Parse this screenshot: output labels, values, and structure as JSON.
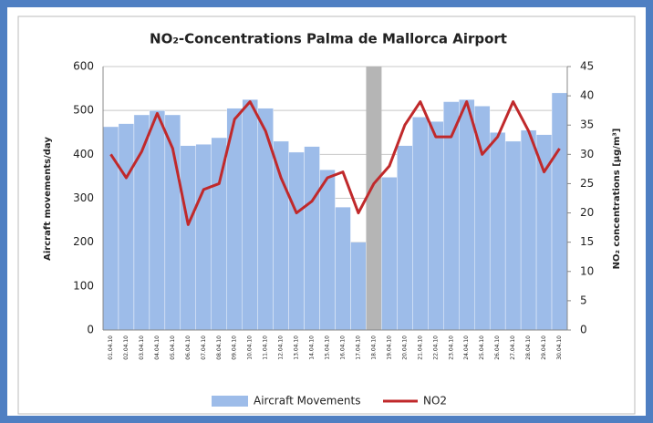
{
  "chart_data": {
    "type": "bar_line",
    "title": "NO₂-Concentrations Palma de Mallorca Airport",
    "y_label": "Aircraft movements/day",
    "y2_label": "NO₂ concentrations [µg/m³]",
    "categories": [
      "01.04.10",
      "02.04.10",
      "03.04.10",
      "04.04.10",
      "05.04.10",
      "06.04.10",
      "07.04.10",
      "08.04.10",
      "09.04.10",
      "10.04.10",
      "11.04.10",
      "12.04.10",
      "13.04.10",
      "14.04.10",
      "15.04.10",
      "16.04.10",
      "17.04.10",
      "18.04.10",
      "19.04.10",
      "20.04.10",
      "21.04.10",
      "22.04.10",
      "23.04.10",
      "24.04.10",
      "25.04.10",
      "26.04.10",
      "27.04.10",
      "28.04.10",
      "29.04.10",
      "30.04.10"
    ],
    "series": [
      {
        "name": "Aircraft Movements",
        "kind": "bar",
        "color": "#9dbce9",
        "axis": "y",
        "values": [
          463,
          470,
          490,
          500,
          490,
          420,
          423,
          438,
          505,
          525,
          505,
          430,
          405,
          418,
          365,
          280,
          200,
          null,
          348,
          420,
          485,
          475,
          520,
          525,
          510,
          450,
          430,
          455,
          445,
          540
        ]
      },
      {
        "name": "NO2",
        "kind": "line",
        "color": "#c0292b",
        "axis": "y2",
        "values": [
          30,
          26,
          30.5,
          37,
          31,
          18,
          24,
          25,
          36,
          39,
          34,
          26,
          20,
          22,
          26,
          27,
          20,
          25,
          28,
          35,
          39,
          33,
          33,
          39,
          30,
          33,
          39,
          34,
          27,
          31
        ]
      }
    ],
    "highlight": {
      "index": 17,
      "color": "#b5b5b5"
    },
    "ylim": [
      0,
      600
    ],
    "yticks": [
      0,
      100,
      200,
      300,
      400,
      500,
      600
    ],
    "y2lim": [
      0,
      45
    ],
    "y2ticks": [
      0,
      5,
      10,
      15,
      20,
      25,
      30,
      35,
      40,
      45
    ],
    "grid": true
  }
}
